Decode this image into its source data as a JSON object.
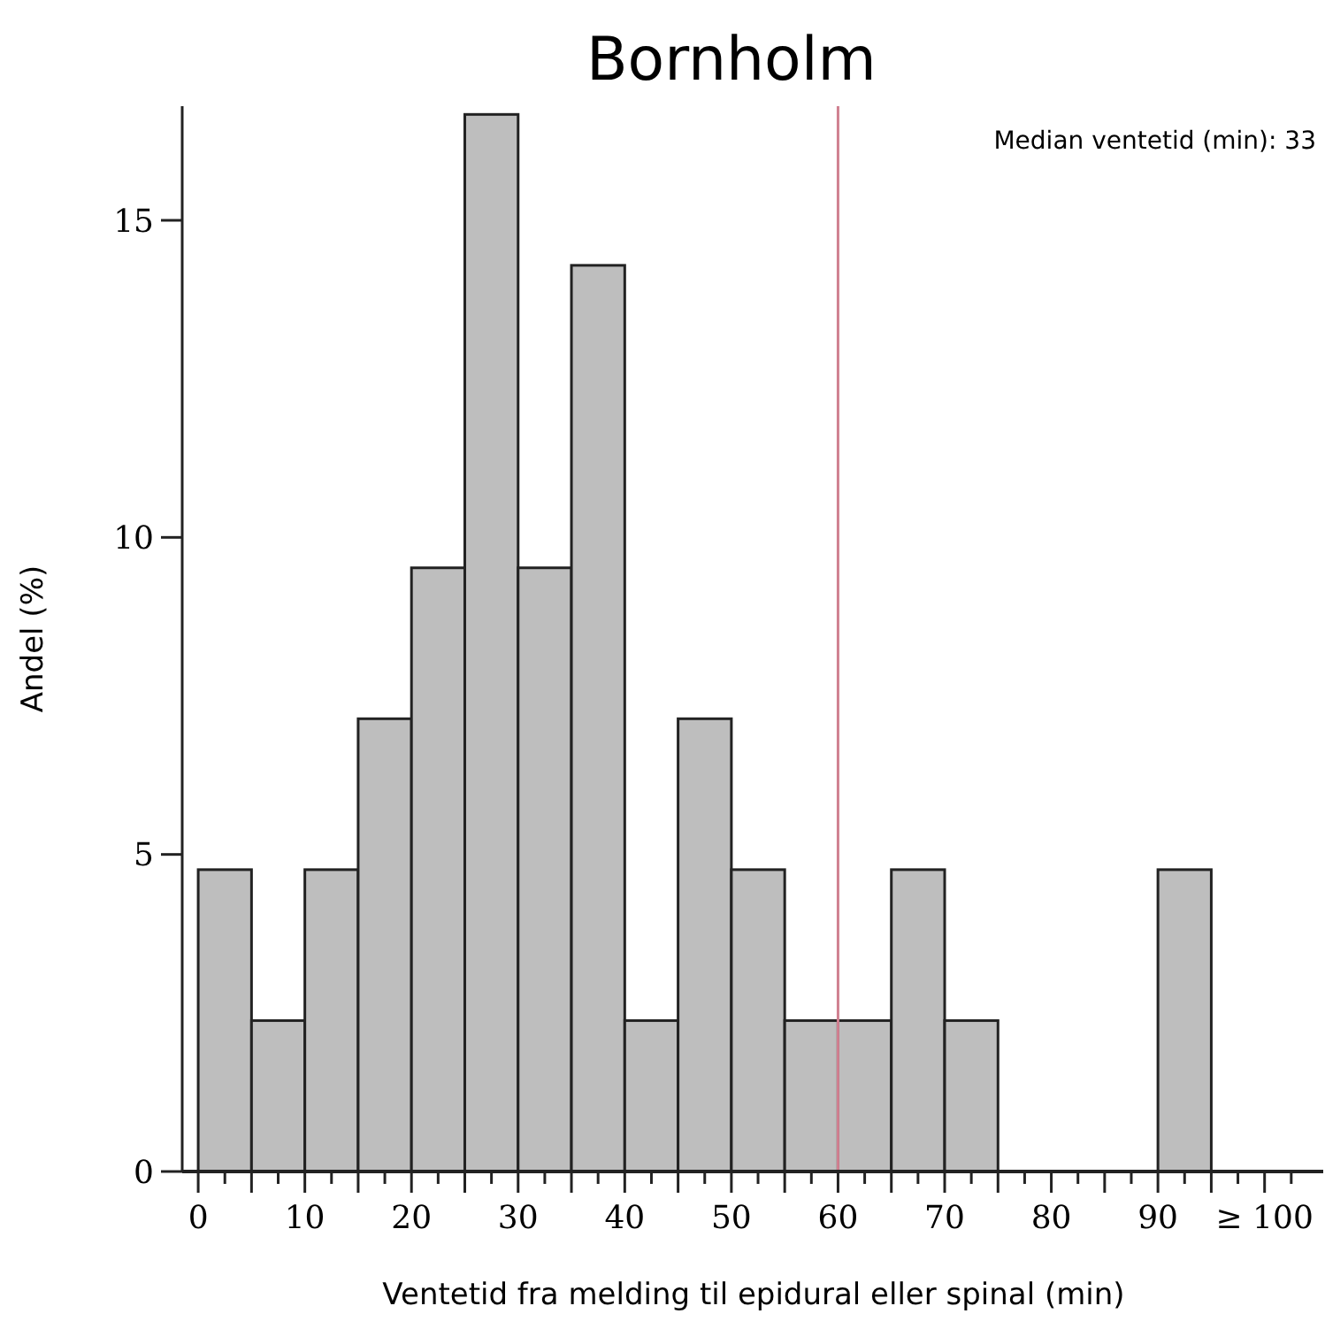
{
  "chart_data": {
    "type": "histogram",
    "title": "Bornholm",
    "xlabel": "Ventetid fra melding til epidural eller spinal (min)",
    "ylabel": "Andel (%)",
    "bins": [
      0,
      5,
      10,
      15,
      20,
      25,
      30,
      35,
      40,
      45,
      50,
      55,
      60,
      65,
      70,
      75,
      80,
      85,
      90,
      95,
      100
    ],
    "values": [
      4.76,
      2.38,
      4.76,
      7.14,
      9.52,
      16.67,
      9.52,
      14.29,
      2.38,
      7.14,
      4.76,
      2.38,
      2.38,
      4.76,
      2.38,
      0,
      0,
      0,
      4.76,
      0
    ],
    "color": "#bebebe",
    "xlim": [
      -1.5,
      105.5
    ],
    "ylim": [
      0,
      16.8
    ],
    "xticks": [
      0,
      {
        "value": 2.5,
        "label": null
      },
      {
        "value": 5,
        "label": null
      },
      {
        "value": 7.5,
        "label": null
      },
      10,
      {
        "value": 12.5,
        "label": null
      },
      {
        "value": 15,
        "label": null
      },
      {
        "value": 17.5,
        "label": null
      },
      20,
      {
        "value": 22.5,
        "label": null
      },
      {
        "value": 25,
        "label": null
      },
      {
        "value": 27.5,
        "label": null
      },
      30,
      {
        "value": 32.5,
        "label": null
      },
      {
        "value": 35,
        "label": null
      },
      {
        "value": 37.5,
        "label": null
      },
      40,
      {
        "value": 42.5,
        "label": null
      },
      {
        "value": 45,
        "label": null
      },
      {
        "value": 47.5,
        "label": null
      },
      50,
      {
        "value": 52.5,
        "label": null
      },
      {
        "value": 55,
        "label": null
      },
      {
        "value": 57.5,
        "label": null
      },
      60,
      {
        "value": 62.5,
        "label": null
      },
      {
        "value": 65,
        "label": null
      },
      {
        "value": 67.5,
        "label": null
      },
      70,
      {
        "value": 72.5,
        "label": null
      },
      {
        "value": 75,
        "label": null
      },
      {
        "value": 77.5,
        "label": null
      },
      80,
      {
        "value": 82.5,
        "label": null
      },
      {
        "value": 85,
        "label": null
      },
      {
        "value": 87.5,
        "label": null
      },
      90,
      {
        "value": 92.5,
        "label": null
      },
      {
        "value": 95,
        "label": null
      },
      {
        "value": 97.5,
        "label": null
      },
      {
        "value": 100,
        "label": "≥ 100"
      },
      {
        "value": 102.5,
        "label": null
      }
    ],
    "yticks": [
      0,
      5,
      10,
      15
    ],
    "ref_lines": [
      {
        "axis": "x",
        "value": 60,
        "color": "#d08090"
      }
    ],
    "annotations": [
      "Median ventetid (min): 33"
    ]
  }
}
